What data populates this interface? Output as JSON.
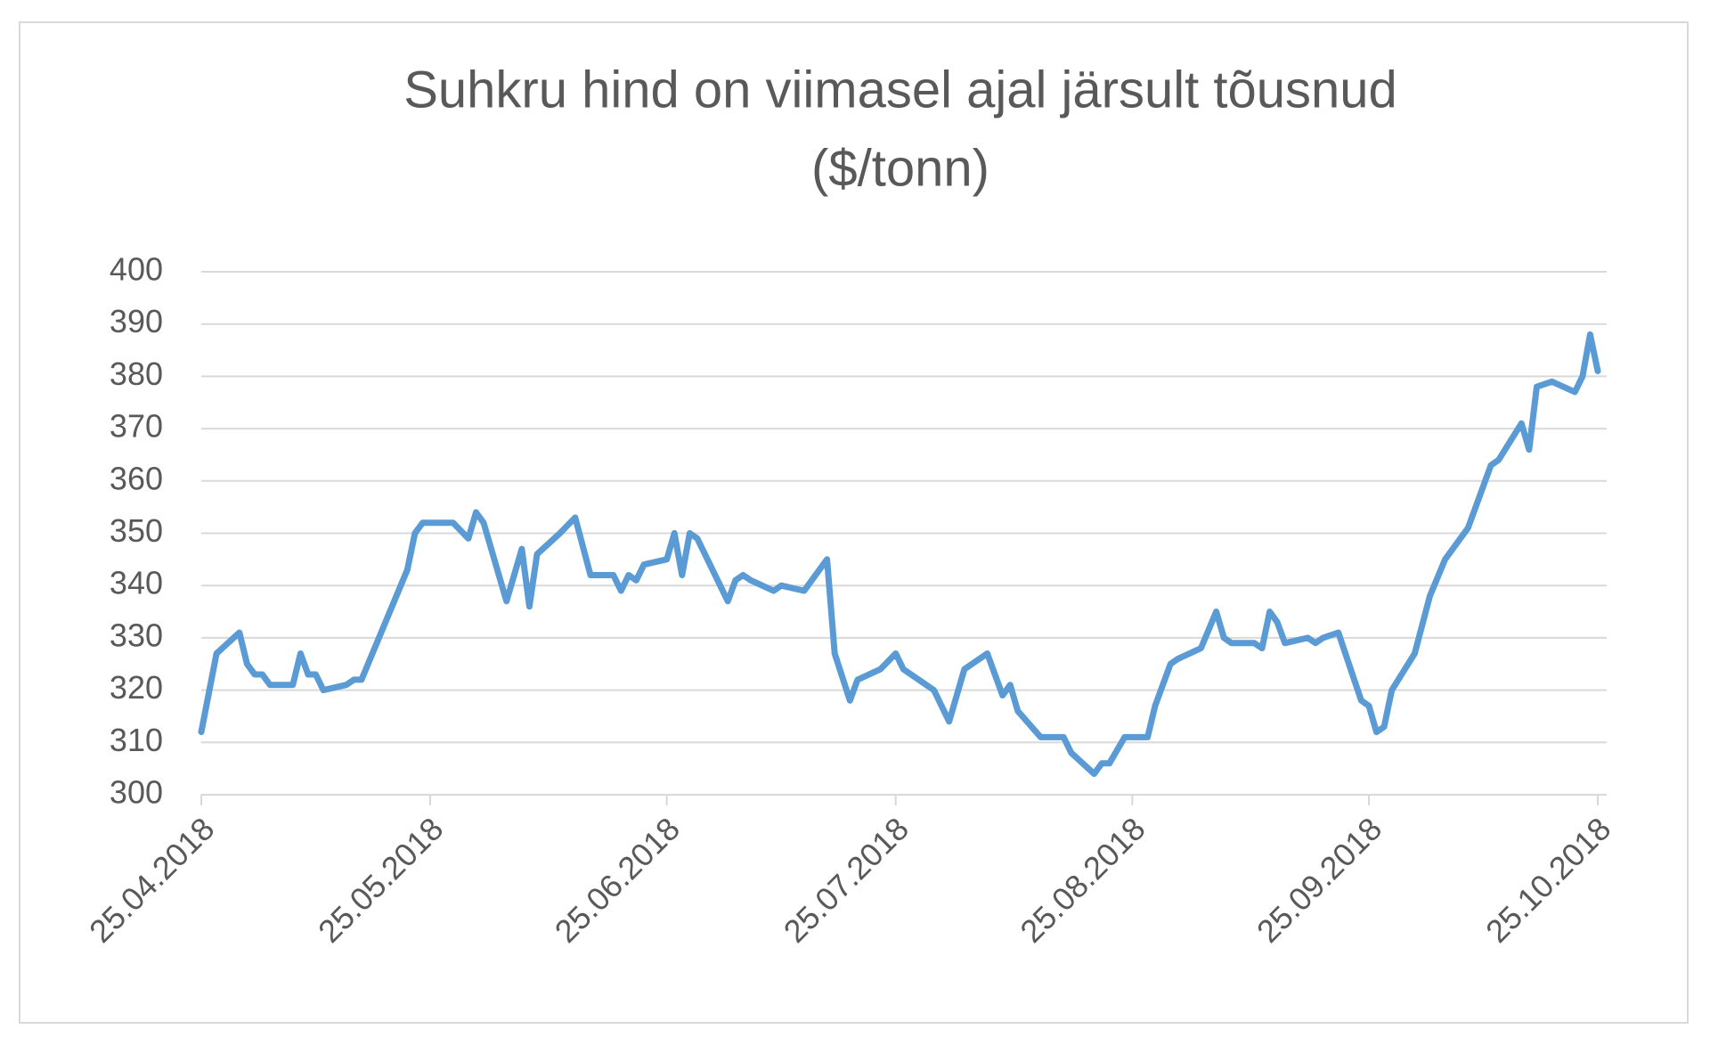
{
  "chart_data": {
    "type": "line",
    "title": [
      "Suhkru hind on viimasel ajal järsult tõusnud",
      "($/tonn)"
    ],
    "x": [
      "25.04.2018",
      "27.04.2018",
      "30.04.2018",
      "01.05.2018",
      "02.05.2018",
      "03.05.2018",
      "04.05.2018",
      "07.05.2018",
      "08.05.2018",
      "09.05.2018",
      "10.05.2018",
      "11.05.2018",
      "14.05.2018",
      "15.05.2018",
      "16.05.2018",
      "22.05.2018",
      "23.05.2018",
      "24.05.2018",
      "28.05.2018",
      "30.05.2018",
      "31.05.2018",
      "01.06.2018",
      "04.06.2018",
      "06.06.2018",
      "07.06.2018",
      "08.06.2018",
      "11.06.2018",
      "13.06.2018",
      "15.06.2018",
      "18.06.2018",
      "19.06.2018",
      "20.06.2018",
      "21.06.2018",
      "22.06.2018",
      "25.06.2018",
      "26.06.2018",
      "27.06.2018",
      "28.06.2018",
      "29.06.2018",
      "03.07.2018",
      "04.07.2018",
      "05.07.2018",
      "06.07.2018",
      "09.07.2018",
      "10.07.2018",
      "13.07.2018",
      "16.07.2018",
      "17.07.2018",
      "19.07.2018",
      "20.07.2018",
      "23.07.2018",
      "25.07.2018",
      "26.07.2018",
      "27.07.2018",
      "30.07.2018",
      "01.08.2018",
      "03.08.2018",
      "06.08.2018",
      "08.08.2018",
      "09.08.2018",
      "10.08.2018",
      "13.08.2018",
      "16.08.2018",
      "17.08.2018",
      "20.08.2018",
      "21.08.2018",
      "22.08.2018",
      "24.08.2018",
      "27.08.2018",
      "28.08.2018",
      "30.08.2018",
      "31.08.2018",
      "03.09.2018",
      "05.09.2018",
      "06.09.2018",
      "07.09.2018",
      "10.09.2018",
      "11.09.2018",
      "12.09.2018",
      "13.09.2018",
      "14.09.2018",
      "17.09.2018",
      "18.09.2018",
      "19.09.2018",
      "21.09.2018",
      "24.09.2018",
      "25.09.2018",
      "26.09.2018",
      "27.09.2018",
      "28.09.2018",
      "01.10.2018",
      "03.10.2018",
      "05.10.2018",
      "08.10.2018",
      "09.10.2018",
      "11.10.2018",
      "12.10.2018",
      "15.10.2018",
      "16.10.2018",
      "17.10.2018",
      "19.10.2018",
      "22.10.2018",
      "23.10.2018",
      "24.10.2018",
      "25.10.2018"
    ],
    "values": [
      312,
      327,
      331,
      325,
      323,
      323,
      321,
      321,
      327,
      323,
      323,
      320,
      321,
      322,
      322,
      343,
      350,
      352,
      352,
      349,
      354,
      352,
      337,
      347,
      336,
      346,
      350,
      353,
      342,
      342,
      339,
      342,
      341,
      344,
      345,
      350,
      342,
      350,
      349,
      337,
      341,
      342,
      341,
      339,
      340,
      339,
      345,
      327,
      318,
      322,
      324,
      327,
      324,
      323,
      320,
      314,
      324,
      327,
      319,
      321,
      316,
      311,
      311,
      308,
      304,
      306,
      306,
      311,
      311,
      317,
      325,
      326,
      328,
      335,
      330,
      329,
      329,
      328,
      335,
      333,
      329,
      330,
      329,
      330,
      331,
      318,
      317,
      312,
      313,
      320,
      327,
      338,
      345,
      351,
      355,
      363,
      364,
      371,
      366,
      378,
      379,
      377,
      380,
      388,
      381
    ],
    "color": "#5b9bd5",
    "xlim": [
      "25.04.2018",
      "25.10.2018"
    ],
    "xticks": [
      "25.04.2018",
      "25.05.2018",
      "25.06.2018",
      "25.07.2018",
      "25.08.2018",
      "25.09.2018",
      "25.10.2018"
    ],
    "ylim": [
      300,
      400
    ],
    "yticks": [
      300,
      310,
      320,
      330,
      340,
      350,
      360,
      370,
      380,
      390,
      400
    ],
    "grid": true
  }
}
